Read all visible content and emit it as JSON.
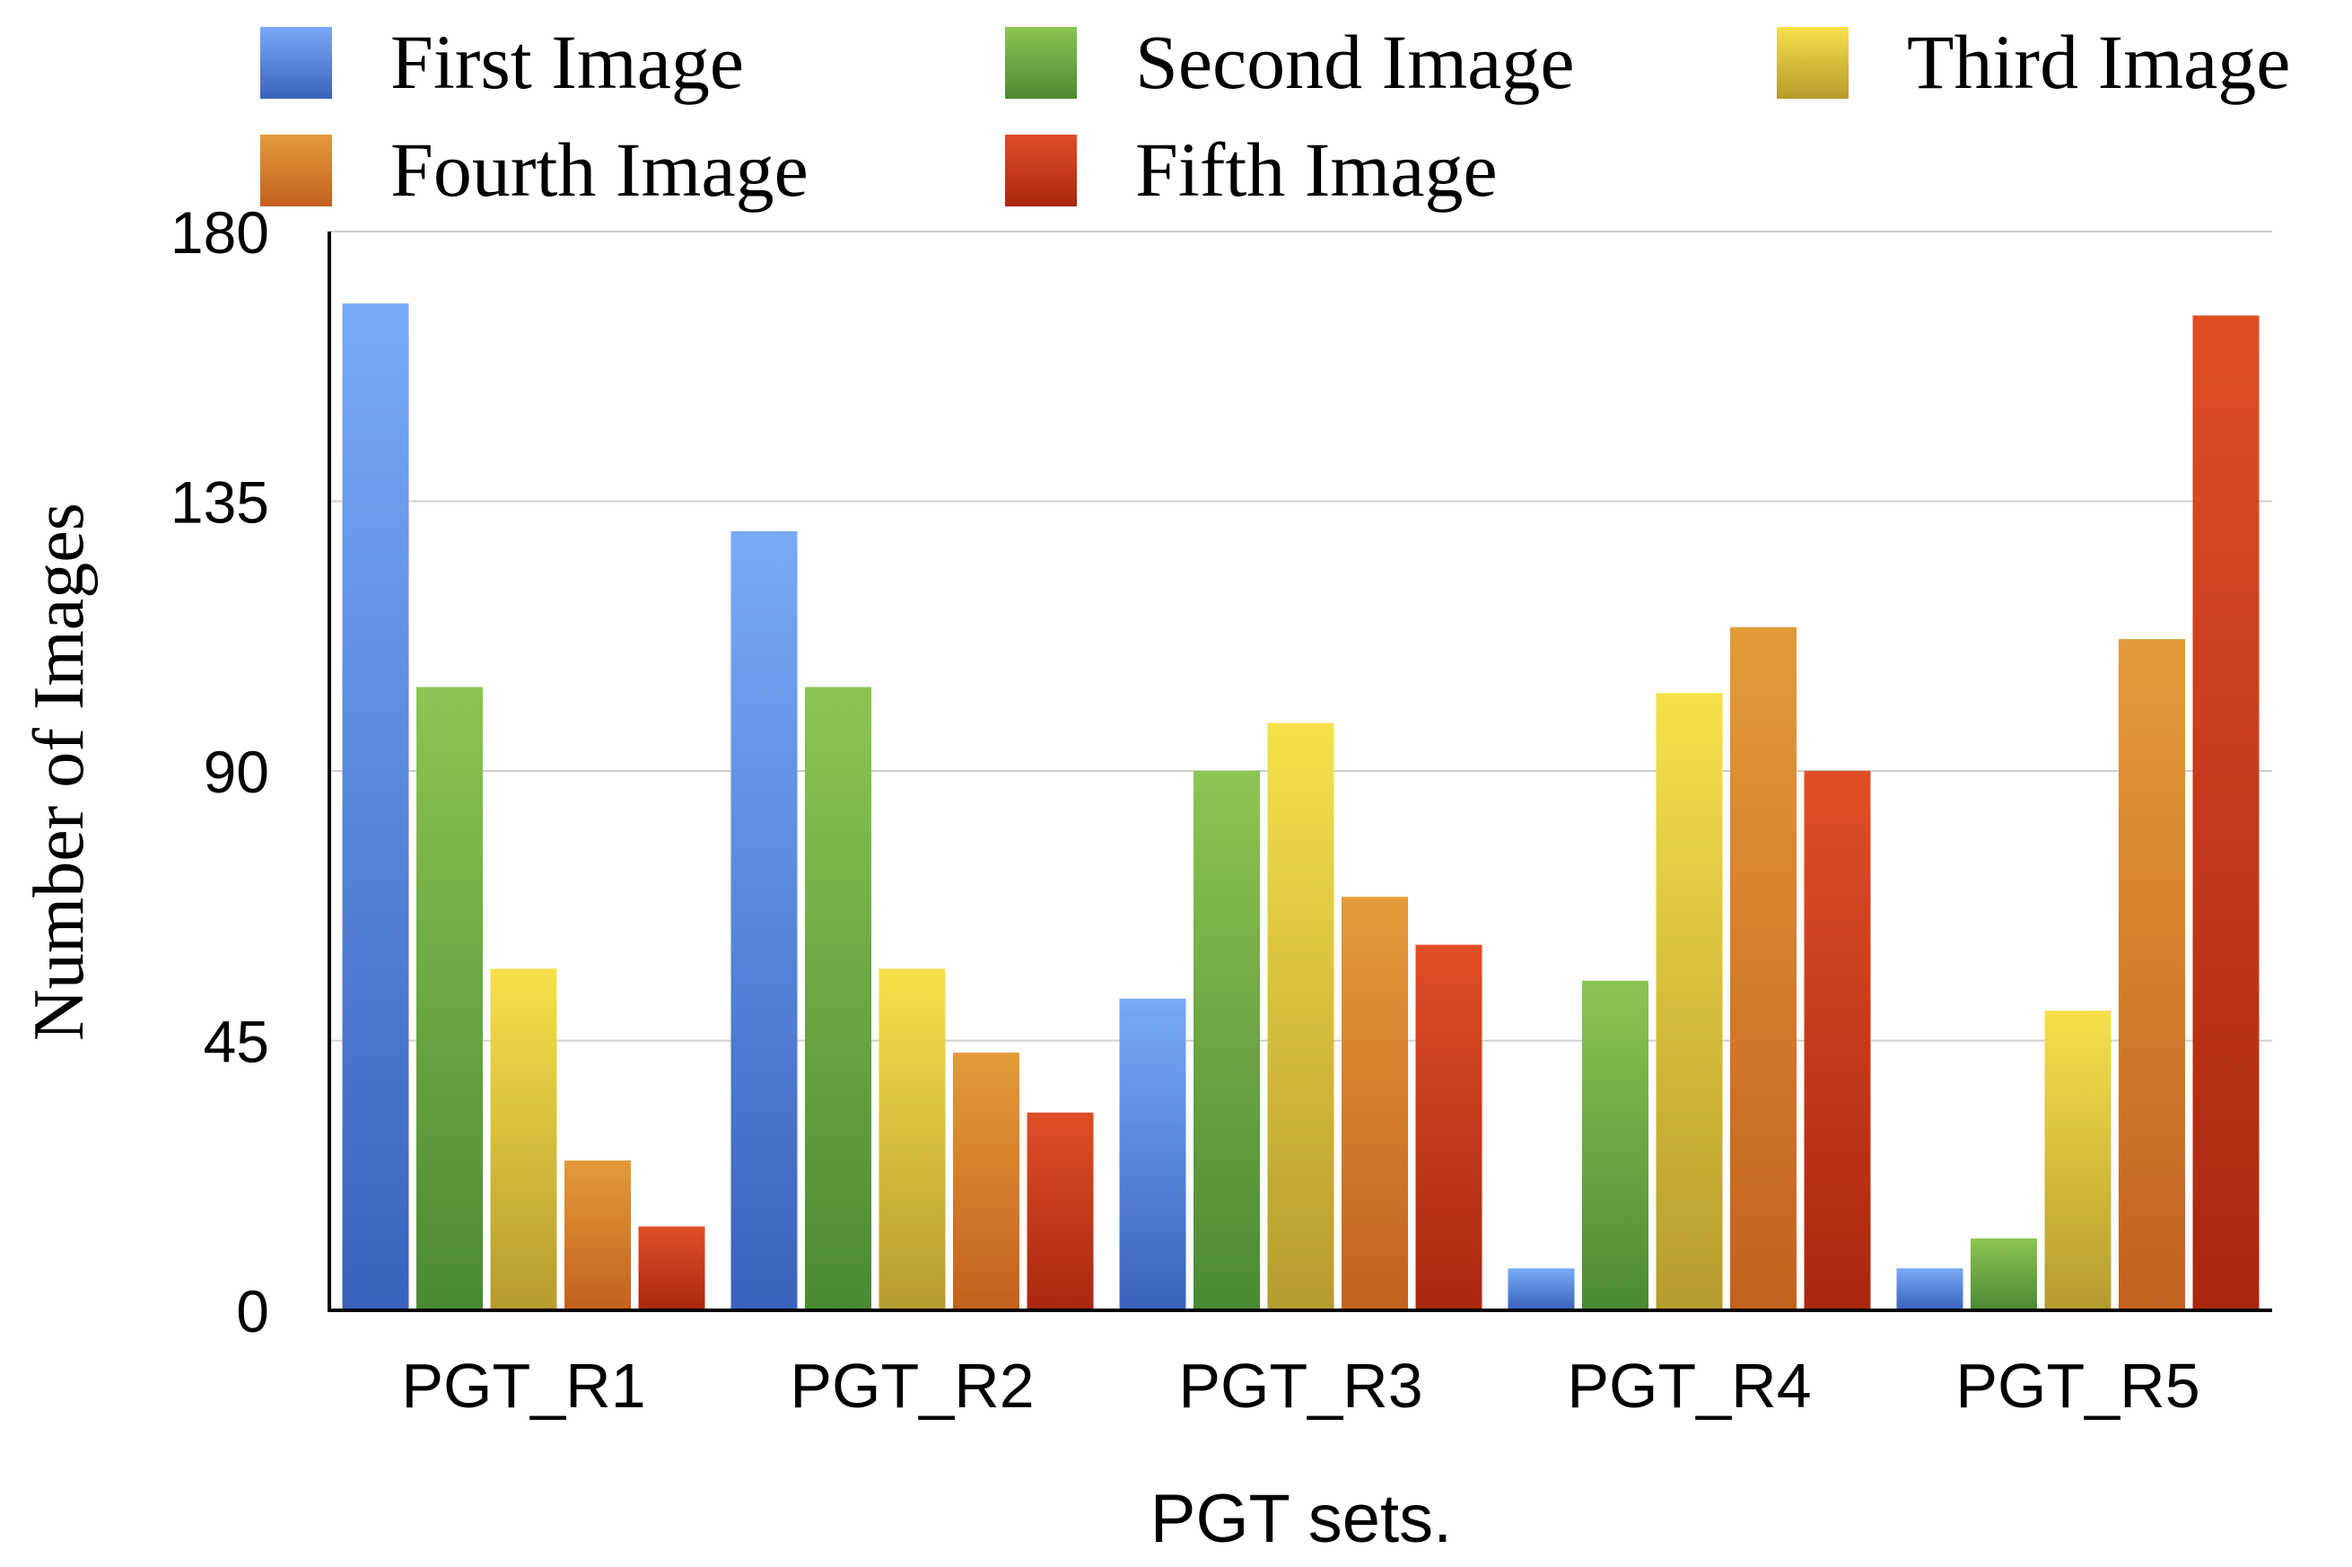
{
  "chart_data": {
    "type": "bar",
    "title": "",
    "xlabel": "PGT sets.",
    "ylabel": "Number of Images",
    "ylim": [
      0,
      180
    ],
    "yticks": [
      0,
      45,
      90,
      135,
      180
    ],
    "grid": true,
    "legend_position": "top",
    "categories": [
      "PGT_R1",
      "PGT_R2",
      "PGT_R3",
      "PGT_R4",
      "PGT_R5"
    ],
    "series": [
      {
        "name": "First Image",
        "color_light": "#78aaf6",
        "color_dark": "#3a62bd",
        "values": [
          168,
          130,
          52,
          7,
          7
        ]
      },
      {
        "name": "Second Image",
        "color_light": "#8cc552",
        "color_dark": "#4a8a33",
        "values": [
          104,
          104,
          90,
          55,
          12
        ]
      },
      {
        "name": "Third Image",
        "color_light": "#f6e14a",
        "color_dark": "#b69b2e",
        "values": [
          57,
          57,
          98,
          103,
          50
        ]
      },
      {
        "name": "Fourth Image",
        "color_light": "#e39b38",
        "color_dark": "#c3611f",
        "values": [
          25,
          43,
          69,
          114,
          112
        ]
      },
      {
        "name": "Fifth Image",
        "color_light": "#e04e26",
        "color_dark": "#a9270f",
        "values": [
          14,
          33,
          61,
          90,
          166
        ]
      }
    ]
  }
}
